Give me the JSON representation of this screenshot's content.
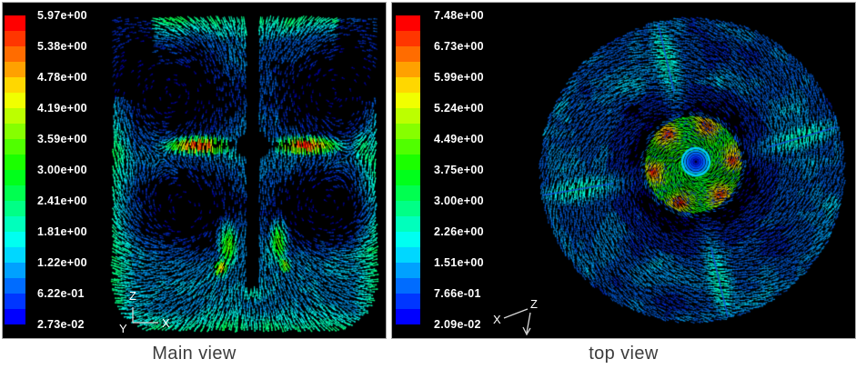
{
  "panels": [
    {
      "id": "main-view",
      "caption": "Main view",
      "legend_labels": [
        "5.97e+00",
        "5.38e+00",
        "4.78e+00",
        "4.19e+00",
        "3.59e+00",
        "3.00e+00",
        "2.41e+00",
        "1.81e+00",
        "1.22e+00",
        "6.22e-01",
        "2.73e-02"
      ],
      "axis_labels": {
        "up": "Z",
        "origin": "Y",
        "right": "X"
      }
    },
    {
      "id": "top-view",
      "caption": "top view",
      "legend_labels": [
        "7.48e+00",
        "6.73e+00",
        "5.99e+00",
        "5.24e+00",
        "4.49e+00",
        "3.75e+00",
        "3.00e+00",
        "2.26e+00",
        "1.51e+00",
        "7.66e-01",
        "2.09e-02"
      ],
      "axis_labels": {
        "left": "X",
        "top": "Z"
      }
    }
  ],
  "colormap_bands": [
    "#0000ff",
    "#0036ff",
    "#006cff",
    "#00a1ff",
    "#00d7ff",
    "#00fff1",
    "#00ffbc",
    "#00ff86",
    "#00ff50",
    "#00ff1b",
    "#1bff00",
    "#50ff00",
    "#86ff00",
    "#bcff00",
    "#f1ff00",
    "#ffd700",
    "#ffa100",
    "#ff6c00",
    "#ff3600",
    "#ff0000"
  ],
  "chart_data": [
    {
      "type": "heatmap",
      "subtype": "velocity-vector-field",
      "title": "Main view",
      "view": "side elevation of a baffled stirred tank with central shaft and radial impeller",
      "colorbar_tick_labels": [
        "5.97e+00",
        "5.38e+00",
        "4.78e+00",
        "4.19e+00",
        "3.59e+00",
        "3.00e+00",
        "2.41e+00",
        "1.81e+00",
        "1.22e+00",
        "6.22e-01",
        "2.73e-02"
      ],
      "colorbar_ticks": [
        5.97,
        5.38,
        4.78,
        4.19,
        3.59,
        3.0,
        2.41,
        1.81,
        1.22,
        0.622,
        0.0273
      ],
      "value_range": [
        0.0273,
        5.97
      ],
      "colormap": "rainbow blue-to-red, 20 discrete bands",
      "legend_position": "left",
      "axis_triad": {
        "up": "Z",
        "right": "X",
        "toward_viewer": "Y"
      },
      "features": [
        "high-velocity radial impeller jet (red/orange, ~5-6) at mid-height on both sides of the shaft",
        "four dark recirculation vortex cores above and below the jet",
        "green/yellow plumes (~3-3.5) flanking the lower shaft near its tip",
        "cyan boundary flow (~1.2-2) along walls, free surface and rounded tank bottom",
        "dark shaft and hub silhouette on black background"
      ]
    },
    {
      "type": "heatmap",
      "subtype": "velocity-vector-field",
      "title": "top view",
      "view": "plan view of the circular tank cross-section",
      "colorbar_tick_labels": [
        "7.48e+00",
        "6.73e+00",
        "5.99e+00",
        "5.24e+00",
        "4.49e+00",
        "3.75e+00",
        "3.00e+00",
        "2.26e+00",
        "1.51e+00",
        "7.66e-01",
        "2.09e-02"
      ],
      "colorbar_ticks": [
        7.48,
        6.73,
        5.99,
        5.24,
        4.49,
        3.75,
        3.0,
        2.26,
        1.51,
        0.766,
        0.0209
      ],
      "value_range": [
        0.0209,
        7.48
      ],
      "colormap": "rainbow blue-to-red, 20 discrete bands",
      "legend_position": "left",
      "axis_triad": {
        "left": "X",
        "origin": "Z",
        "down_arrow": true
      },
      "features": [
        "tangential swirl of dark blue/cyan vectors (~0.5-2) filling the circular section",
        "central impeller disk (green, ~3.5-4.5) with yellow-orange lobes (~5.5-6.5) and tiny red spots",
        "concentric blue vortex core rings at the disk center",
        "four brighter cyan baffle wakes with dark blue core lines, ~90 degrees apart"
      ]
    }
  ]
}
